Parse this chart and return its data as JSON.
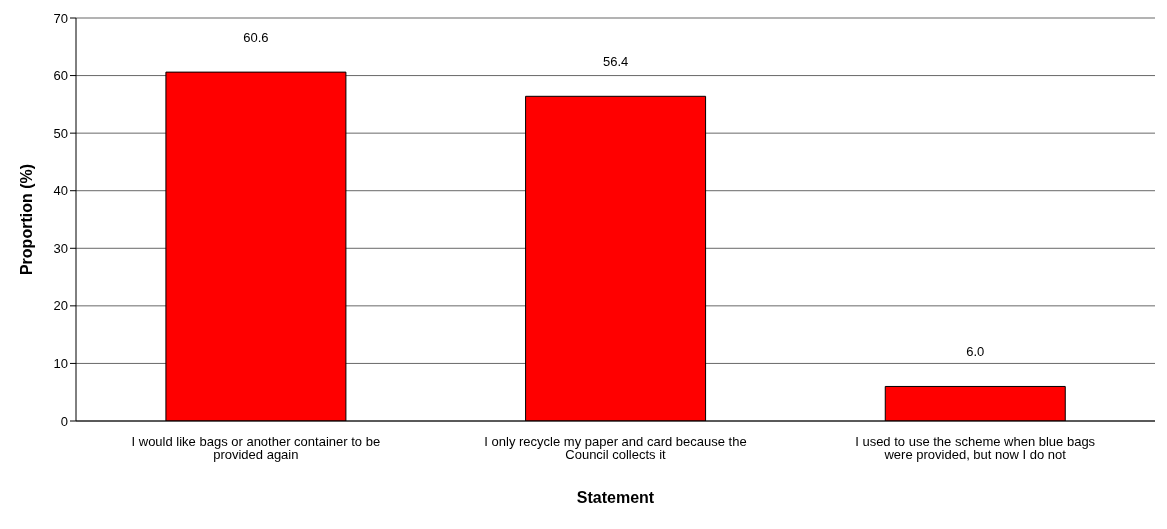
{
  "chart_data": {
    "type": "bar",
    "xlabel": "Statement",
    "ylabel": "Proportion (%)",
    "categories": [
      "I would like bags or another container to be provided again",
      "I only recycle my paper and card because the Council collects it",
      "I used to use the scheme when blue bags were provided, but now I do not"
    ],
    "values": [
      60.6,
      56.4,
      6.0
    ],
    "color": "#ff0000",
    "value_labels": [
      "60.6",
      "56.4",
      "6.0"
    ],
    "ylim": [
      0,
      70
    ],
    "yticks": [
      0,
      10,
      20,
      30,
      40,
      50,
      60,
      70
    ],
    "grid": "y",
    "legend": false
  }
}
